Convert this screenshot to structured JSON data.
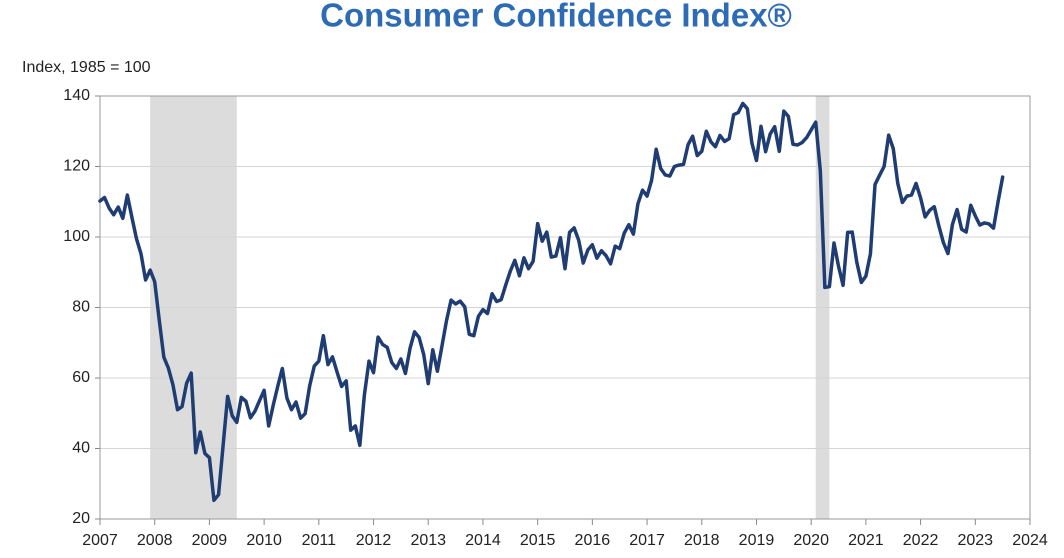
{
  "chart_data": {
    "type": "line",
    "title": "Consumer Confidence Index®",
    "y_label": "Index, 1985 = 100",
    "x": [
      2007,
      2007.083,
      2007.167,
      2007.25,
      2007.333,
      2007.417,
      2007.5,
      2007.583,
      2007.667,
      2007.75,
      2007.833,
      2007.917,
      2008,
      2008.083,
      2008.167,
      2008.25,
      2008.333,
      2008.417,
      2008.5,
      2008.583,
      2008.667,
      2008.75,
      2008.833,
      2008.917,
      2009,
      2009.083,
      2009.167,
      2009.25,
      2009.333,
      2009.417,
      2009.5,
      2009.583,
      2009.667,
      2009.75,
      2009.833,
      2009.917,
      2010,
      2010.083,
      2010.167,
      2010.25,
      2010.333,
      2010.417,
      2010.5,
      2010.583,
      2010.667,
      2010.75,
      2010.833,
      2010.917,
      2011,
      2011.083,
      2011.167,
      2011.25,
      2011.333,
      2011.417,
      2011.5,
      2011.583,
      2011.667,
      2011.75,
      2011.833,
      2011.917,
      2012,
      2012.083,
      2012.167,
      2012.25,
      2012.333,
      2012.417,
      2012.5,
      2012.583,
      2012.667,
      2012.75,
      2012.833,
      2012.917,
      2013,
      2013.083,
      2013.167,
      2013.25,
      2013.333,
      2013.417,
      2013.5,
      2013.583,
      2013.667,
      2013.75,
      2013.833,
      2013.917,
      2014,
      2014.083,
      2014.167,
      2014.25,
      2014.333,
      2014.417,
      2014.5,
      2014.583,
      2014.667,
      2014.75,
      2014.833,
      2014.917,
      2015,
      2015.083,
      2015.167,
      2015.25,
      2015.333,
      2015.417,
      2015.5,
      2015.583,
      2015.667,
      2015.75,
      2015.833,
      2015.917,
      2016,
      2016.083,
      2016.167,
      2016.25,
      2016.333,
      2016.417,
      2016.5,
      2016.583,
      2016.667,
      2016.75,
      2016.833,
      2016.917,
      2017,
      2017.083,
      2017.167,
      2017.25,
      2017.333,
      2017.417,
      2017.5,
      2017.583,
      2017.667,
      2017.75,
      2017.833,
      2017.917,
      2018,
      2018.083,
      2018.167,
      2018.25,
      2018.333,
      2018.417,
      2018.5,
      2018.583,
      2018.667,
      2018.75,
      2018.833,
      2018.917,
      2019,
      2019.083,
      2019.167,
      2019.25,
      2019.333,
      2019.417,
      2019.5,
      2019.583,
      2019.667,
      2019.75,
      2019.833,
      2019.917,
      2020,
      2020.083,
      2020.167,
      2020.25,
      2020.333,
      2020.417,
      2020.5,
      2020.583,
      2020.667,
      2020.75,
      2020.833,
      2020.917,
      2021,
      2021.083,
      2021.167,
      2021.25,
      2021.333,
      2021.417,
      2021.5,
      2021.583,
      2021.667,
      2021.75,
      2021.833,
      2021.917,
      2022,
      2022.083,
      2022.167,
      2022.25,
      2022.333,
      2022.417,
      2022.5,
      2022.583,
      2022.667,
      2022.75,
      2022.833,
      2022.917,
      2023,
      2023.083,
      2023.167,
      2023.25,
      2023.333,
      2023.417,
      2023.5
    ],
    "series": [
      {
        "color": "#1f3d73",
        "values": [
          110.2,
          111.2,
          108.2,
          106.3,
          108.5,
          105.3,
          111.9,
          105.6,
          99.5,
          95.2,
          87.8,
          90.6,
          87.3,
          76.4,
          65.9,
          62.8,
          58.1,
          51.0,
          51.9,
          58.5,
          61.4,
          38.8,
          44.7,
          38.6,
          37.4,
          25.3,
          26.9,
          40.8,
          54.8,
          49.3,
          47.4,
          54.5,
          53.4,
          48.7,
          50.6,
          53.6,
          56.5,
          46.4,
          52.3,
          57.7,
          62.7,
          54.3,
          51.0,
          53.2,
          48.6,
          49.9,
          57.8,
          63.4,
          64.8,
          72.0,
          63.8,
          66.0,
          61.7,
          57.6,
          59.2,
          45.2,
          46.4,
          40.9,
          55.2,
          64.8,
          61.5,
          71.6,
          69.5,
          68.7,
          64.4,
          62.7,
          65.4,
          61.3,
          68.4,
          73.1,
          71.5,
          66.7,
          58.4,
          68.0,
          61.9,
          69.0,
          76.2,
          82.1,
          81.0,
          81.8,
          80.2,
          72.4,
          72.0,
          77.5,
          79.4,
          78.3,
          83.9,
          81.7,
          82.2,
          86.4,
          90.3,
          93.4,
          89.0,
          94.1,
          91.0,
          93.1,
          103.8,
          98.8,
          101.4,
          94.3,
          94.6,
          99.8,
          91.0,
          101.3,
          102.6,
          99.1,
          92.6,
          96.3,
          97.8,
          94.0,
          96.1,
          94.7,
          92.4,
          97.4,
          96.7,
          101.1,
          103.5,
          100.8,
          109.4,
          113.3,
          111.6,
          116.1,
          124.9,
          119.4,
          117.6,
          117.3,
          120.0,
          120.4,
          120.6,
          126.2,
          128.6,
          123.1,
          124.3,
          130.0,
          127.0,
          125.6,
          128.8,
          127.1,
          127.9,
          134.7,
          135.3,
          137.9,
          136.4,
          126.6,
          121.7,
          131.4,
          124.2,
          129.2,
          131.3,
          124.3,
          135.7,
          134.2,
          126.3,
          126.1,
          126.8,
          128.2,
          130.4,
          132.6,
          118.8,
          85.7,
          85.9,
          98.3,
          91.7,
          86.3,
          101.3,
          101.4,
          92.9,
          87.1,
          88.9,
          95.2,
          114.9,
          117.5,
          120.0,
          128.9,
          125.1,
          115.2,
          109.8,
          111.6,
          111.9,
          115.2,
          111.1,
          105.7,
          107.6,
          108.6,
          103.2,
          98.4,
          95.3,
          103.6,
          107.8,
          102.2,
          101.4,
          109.0,
          106.0,
          103.4,
          104.0,
          103.7,
          102.5,
          110.1,
          117.0
        ]
      }
    ],
    "recessions": [
      [
        2007.917,
        2009.5
      ],
      [
        2020.083,
        2020.333
      ]
    ],
    "recession_color": "#dcdcdc",
    "xlim": [
      2007,
      2024
    ],
    "xticks": [
      2007,
      2008,
      2009,
      2010,
      2011,
      2012,
      2013,
      2014,
      2015,
      2016,
      2017,
      2018,
      2019,
      2020,
      2021,
      2022,
      2023,
      2024
    ],
    "ylim": [
      20,
      140
    ],
    "yticks": [
      20,
      40,
      60,
      80,
      100,
      120,
      140
    ],
    "grid": true
  }
}
